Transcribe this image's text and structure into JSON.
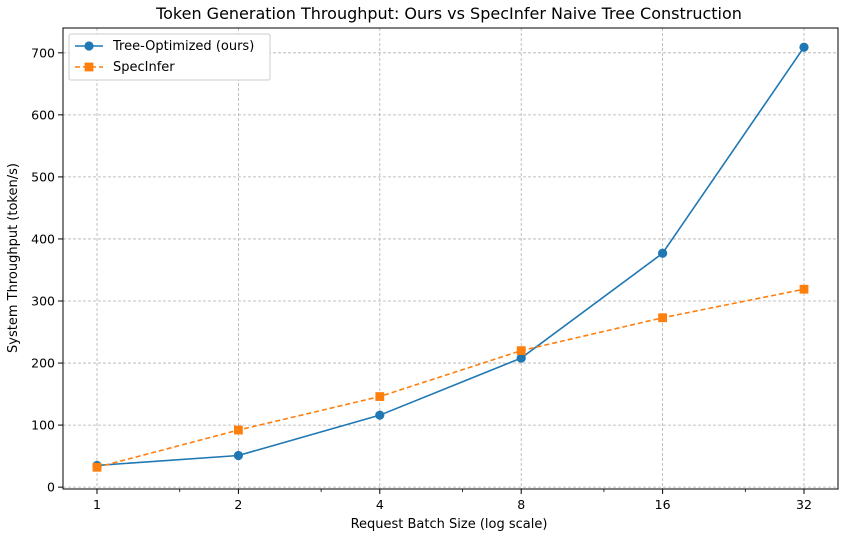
{
  "chart_data": {
    "type": "line",
    "title": "Token Generation Throughput: Ours vs SpecInfer Naive Tree Construction",
    "xlabel": "Request Batch Size (log scale)",
    "ylabel": "System Throughput (token/s)",
    "x_scale": "log2",
    "x": [
      1,
      2,
      4,
      8,
      16,
      32
    ],
    "x_tick_labels": [
      "1",
      "2",
      "4",
      "8",
      "16",
      "32"
    ],
    "y_ticks": [
      0,
      100,
      200,
      300,
      400,
      500,
      600,
      700
    ],
    "ylim": [
      -3,
      740
    ],
    "grid": true,
    "legend_position": "top-left",
    "series": [
      {
        "name": "Tree-Optimized (ours)",
        "values": [
          35,
          51,
          116,
          208,
          377,
          709
        ],
        "color": "#1f77b4",
        "marker": "circle",
        "line_style": "solid"
      },
      {
        "name": "SpecInfer",
        "values": [
          32,
          92,
          146,
          220,
          273,
          319
        ],
        "color": "#ff7f0e",
        "marker": "square",
        "line_style": "dashed"
      }
    ]
  }
}
